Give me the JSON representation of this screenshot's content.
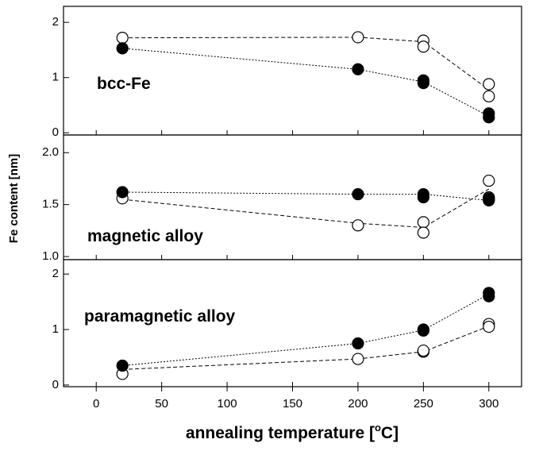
{
  "chart_data": {
    "type": "scatter",
    "x_label": [
      "annealing temperature [",
      "o",
      "C]"
    ],
    "y_label": "Fe content [nm]",
    "xlim": [
      -25,
      325
    ],
    "xticks": [
      0,
      50,
      100,
      150,
      200,
      250,
      300
    ],
    "panels": [
      {
        "label": "bcc-Fe",
        "ylim": [
          -0.04,
          2.29
        ],
        "yticks": [
          0,
          1,
          2
        ],
        "series": [
          {
            "marker": "open",
            "x": [
              20,
              200,
              250,
              250,
              300,
              300
            ],
            "values": [
              1.72,
              1.73,
              1.67,
              1.56,
              0.88,
              0.66
            ]
          },
          {
            "marker": "filled",
            "x": [
              20,
              200,
              250,
              250,
              300,
              300
            ],
            "values": [
              1.53,
              1.15,
              0.95,
              0.9,
              0.35,
              0.28
            ]
          },
          {
            "line": "dashed",
            "x": [
              20,
              200,
              250,
              300
            ],
            "values": [
              1.72,
              1.73,
              1.65,
              0.78
            ]
          },
          {
            "line": "dotted",
            "x": [
              20,
              200,
              250,
              300
            ],
            "values": [
              1.53,
              1.15,
              0.92,
              0.3
            ]
          }
        ]
      },
      {
        "label": "magnetic alloy",
        "ylim": [
          0.97,
          2.17
        ],
        "yticks": [
          {
            "value": 1,
            "label": "1.0"
          },
          {
            "value": 1.5,
            "label": "1.5"
          },
          {
            "value": 2,
            "label": "2.0"
          }
        ],
        "series": [
          {
            "marker": "open",
            "x": [
              20,
              200,
              250,
              250,
              300,
              300,
              300
            ],
            "values": [
              1.56,
              1.3,
              1.33,
              1.23,
              1.73,
              1.57,
              1.55
            ]
          },
          {
            "marker": "filled",
            "x": [
              20,
              200,
              250,
              250,
              300,
              300
            ],
            "values": [
              1.62,
              1.6,
              1.6,
              1.57,
              1.56,
              1.54
            ]
          },
          {
            "line": "dashed",
            "x": [
              20,
              200,
              250,
              300
            ],
            "values": [
              1.55,
              1.32,
              1.28,
              1.65
            ]
          },
          {
            "line": "dotted",
            "x": [
              20,
              200,
              250,
              300
            ],
            "values": [
              1.62,
              1.6,
              1.6,
              1.54
            ]
          }
        ]
      },
      {
        "label": "paramagnetic alloy",
        "ylim": [
          -0.03,
          2.26
        ],
        "yticks": [
          0,
          1,
          2
        ],
        "series": [
          {
            "marker": "open",
            "x": [
              20,
              200,
              250,
              250,
              300,
              300
            ],
            "values": [
              0.2,
              0.47,
              0.6,
              0.62,
              1.1,
              1.05
            ]
          },
          {
            "marker": "filled",
            "x": [
              20,
              200,
              250,
              250,
              300,
              300
            ],
            "values": [
              0.35,
              0.75,
              1.0,
              0.98,
              1.66,
              1.6
            ]
          },
          {
            "line": "dashed",
            "x": [
              20,
              200,
              250,
              300
            ],
            "values": [
              0.28,
              0.47,
              0.6,
              1.06
            ]
          },
          {
            "line": "dotted",
            "x": [
              20,
              200,
              250,
              300
            ],
            "values": [
              0.35,
              0.75,
              0.99,
              1.64
            ]
          }
        ]
      }
    ]
  }
}
